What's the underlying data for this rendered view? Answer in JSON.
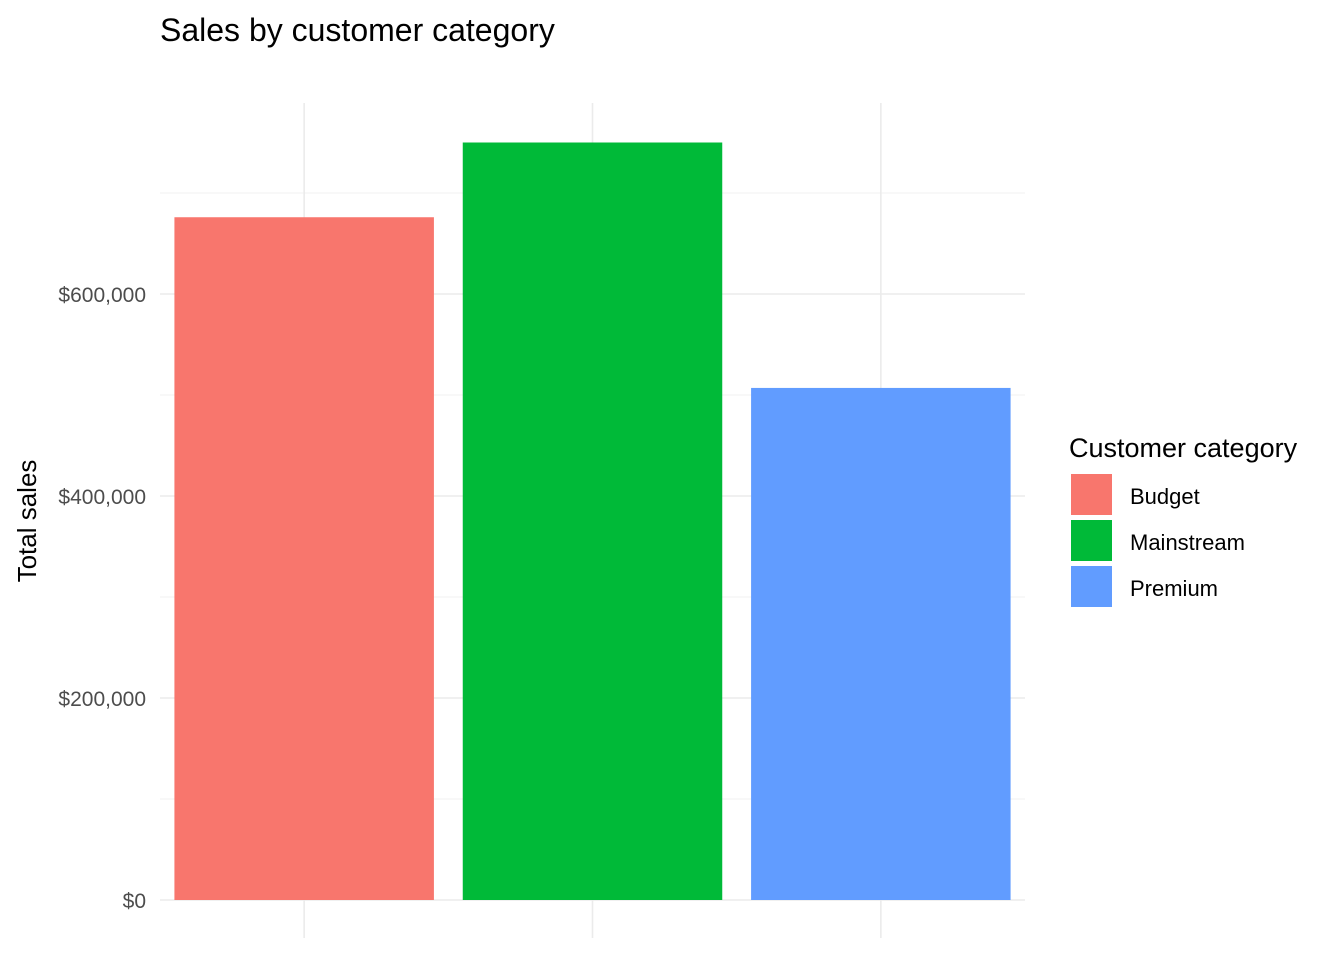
{
  "chart_data": {
    "type": "bar",
    "title": "Sales by customer category",
    "xlabel": "",
    "ylabel": "Total sales",
    "categories": [
      "Budget",
      "Mainstream",
      "Premium"
    ],
    "values": [
      676000,
      750000,
      507000
    ],
    "colors": [
      "#F8766D",
      "#00BA38",
      "#619CFF"
    ],
    "ylim": [
      0,
      780000
    ],
    "y_ticks": [
      0,
      200000,
      400000,
      600000
    ],
    "y_tick_labels": [
      "$0",
      "$200,000",
      "$400,000",
      "$600,000"
    ],
    "grid": true,
    "legend": {
      "title": "Customer category",
      "position": "right",
      "entries": [
        "Budget",
        "Mainstream",
        "Premium"
      ]
    }
  }
}
